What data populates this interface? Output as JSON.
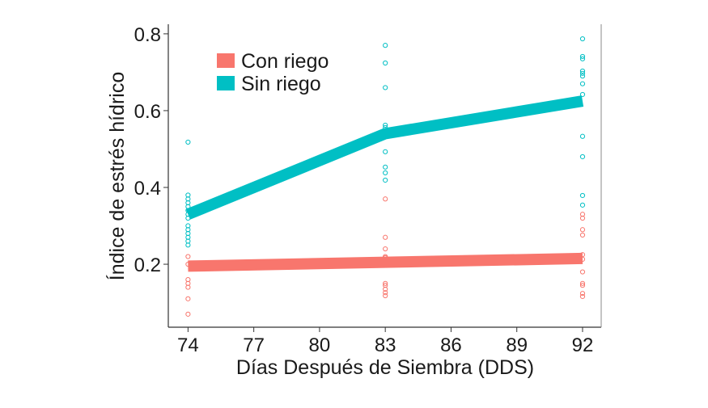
{
  "chart_data": {
    "type": "line",
    "title": "",
    "xlabel": "Días Después de Siembra (DDS)",
    "ylabel": "Índice de estrés hídrico",
    "xlim": [
      73.1,
      92.85
    ],
    "ylim": [
      0.036,
      0.825
    ],
    "xticks": [
      74,
      77,
      80,
      83,
      86,
      89,
      92
    ],
    "yticks": [
      0.2,
      0.4,
      0.6,
      0.8
    ],
    "ytick_labels": [
      "0.2",
      "0.4",
      "0.6",
      "0.8"
    ],
    "grid": false,
    "legend_position": "top-left",
    "series": [
      {
        "name": "Con riego",
        "color": "#F8766D",
        "x": [
          74,
          83,
          92
        ],
        "y": [
          0.195,
          0.205,
          0.215
        ],
        "points": [
          [
            74,
            0.22
          ],
          [
            74,
            0.2
          ],
          [
            74,
            0.16
          ],
          [
            74,
            0.15
          ],
          [
            74,
            0.14
          ],
          [
            74,
            0.11
          ],
          [
            74,
            0.07
          ],
          [
            83,
            0.37
          ],
          [
            83,
            0.27
          ],
          [
            83,
            0.24
          ],
          [
            83,
            0.22
          ],
          [
            83,
            0.217
          ],
          [
            83,
            0.21
          ],
          [
            83,
            0.15
          ],
          [
            83,
            0.145
          ],
          [
            83,
            0.135
          ],
          [
            83,
            0.126
          ],
          [
            83,
            0.118
          ],
          [
            92,
            0.33
          ],
          [
            92,
            0.32
          ],
          [
            92,
            0.29
          ],
          [
            92,
            0.276
          ],
          [
            92,
            0.225
          ],
          [
            92,
            0.213
          ],
          [
            92,
            0.18
          ],
          [
            92,
            0.15
          ],
          [
            92,
            0.145
          ],
          [
            92,
            0.124
          ],
          [
            92,
            0.116
          ]
        ]
      },
      {
        "name": "Sin riego",
        "color": "#00BFC4",
        "x": [
          74,
          83,
          92
        ],
        "y": [
          0.33,
          0.54,
          0.625
        ],
        "points": [
          [
            74,
            0.518
          ],
          [
            74,
            0.38
          ],
          [
            74,
            0.37
          ],
          [
            74,
            0.36
          ],
          [
            74,
            0.35
          ],
          [
            74,
            0.34
          ],
          [
            74,
            0.33
          ],
          [
            74,
            0.32
          ],
          [
            74,
            0.3
          ],
          [
            74,
            0.29
          ],
          [
            74,
            0.28
          ],
          [
            74,
            0.27
          ],
          [
            74,
            0.26
          ],
          [
            74,
            0.25
          ],
          [
            83,
            0.77
          ],
          [
            83,
            0.724
          ],
          [
            83,
            0.66
          ],
          [
            83,
            0.562
          ],
          [
            83,
            0.556
          ],
          [
            83,
            0.493
          ],
          [
            83,
            0.453
          ],
          [
            83,
            0.438
          ],
          [
            83,
            0.419
          ],
          [
            92,
            0.787
          ],
          [
            92,
            0.741
          ],
          [
            92,
            0.735
          ],
          [
            92,
            0.703
          ],
          [
            92,
            0.697
          ],
          [
            92,
            0.69
          ],
          [
            92,
            0.67
          ],
          [
            92,
            0.642
          ],
          [
            92,
            0.533
          ],
          [
            92,
            0.48
          ],
          [
            92,
            0.379
          ],
          [
            92,
            0.354
          ]
        ]
      }
    ]
  }
}
